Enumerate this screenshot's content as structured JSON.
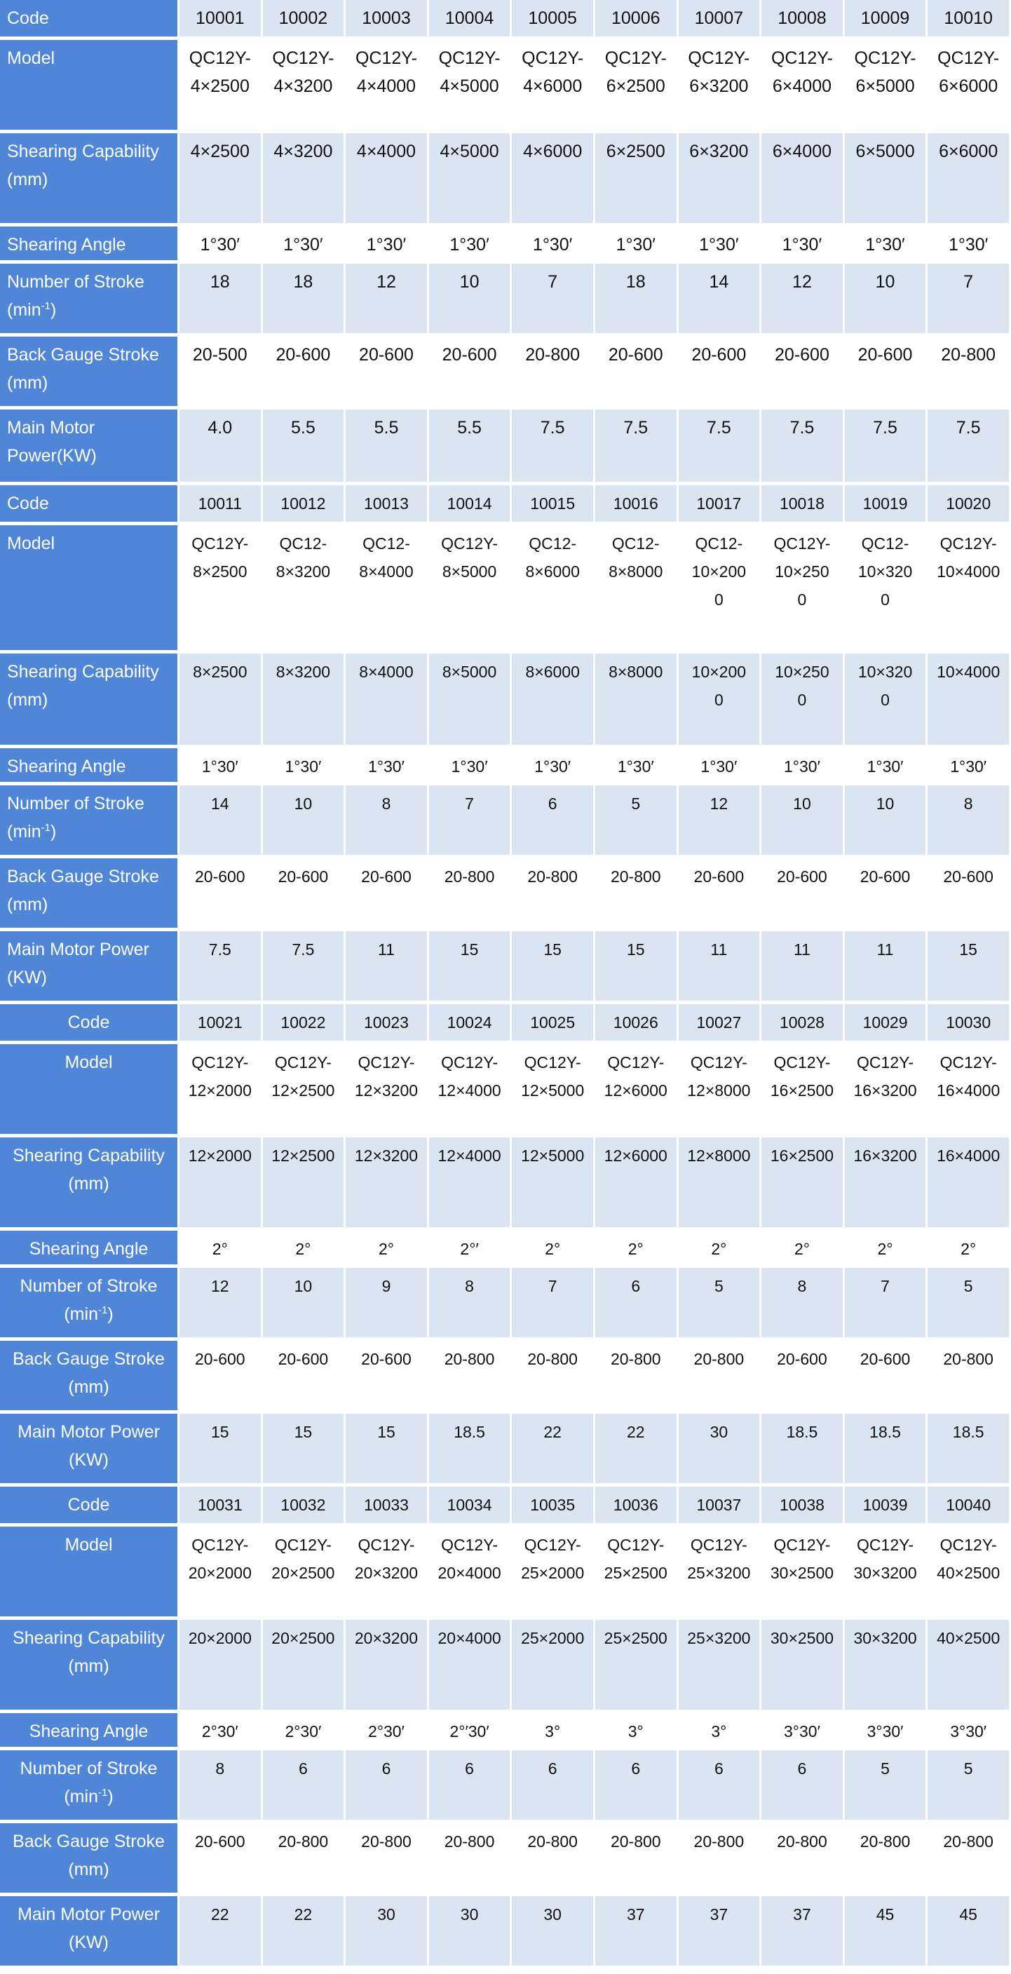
{
  "tables": [
    {
      "codes": [
        "10001",
        "10002",
        "10003",
        "10004",
        "10005",
        "10006",
        "10007",
        "10008",
        "10009",
        "10010"
      ],
      "labels": {
        "code": "Code",
        "model": "Model",
        "shear_cap_1": "Shearing Capability",
        "shear_cap_2": "(mm)",
        "angle": "Shearing Angle",
        "stroke_1": "Number of Stroke",
        "stroke_2a": "(min",
        "stroke_sup": "-1",
        "stroke_2b": ")",
        "gauge_1": "Back Gauge Stroke",
        "gauge_2": "(mm)",
        "motor_1": "Main Motor",
        "motor_2": "Power(KW)"
      },
      "model_top": [
        "QC12Y-",
        "QC12Y-",
        "QC12Y-",
        "QC12Y-",
        "QC12Y-",
        "QC12Y-",
        "QC12Y-",
        "QC12Y-",
        "QC12Y-",
        "QC12Y-"
      ],
      "model_bottom": [
        "4×2500",
        "4×3200",
        "4×4000",
        "4×5000",
        "4×6000",
        "6×2500",
        "6×3200",
        "6×4000",
        "6×5000",
        "6×6000"
      ],
      "capability": [
        "4×2500",
        "4×3200",
        "4×4000",
        "4×5000",
        "4×6000",
        "6×2500",
        "6×3200",
        "6×4000",
        "6×5000",
        "6×6000"
      ],
      "angle": [
        "1°30′",
        "1°30′",
        "1°30′",
        "1°30′",
        "1°30′",
        "1°30′",
        "1°30′",
        "1°30′",
        "1°30′",
        "1°30′"
      ],
      "strokes": [
        "18",
        "18",
        "12",
        "10",
        "7",
        "18",
        "14",
        "12",
        "10",
        "7"
      ],
      "gauge": [
        "20-500",
        "20-600",
        "20-600",
        "20-600",
        "20-800",
        "20-600",
        "20-600",
        "20-600",
        "20-600",
        "20-800"
      ],
      "motor": [
        "4.0",
        "5.5",
        "5.5",
        "5.5",
        "7.5",
        "7.5",
        "7.5",
        "7.5",
        "7.5",
        "7.5"
      ]
    },
    {
      "codes": [
        "10011",
        "10012",
        "10013",
        "10014",
        "10015",
        "10016",
        "10017",
        "10018",
        "10019",
        "10020"
      ],
      "labels": {
        "code": "Code",
        "model": "Model",
        "shear_cap_1": "Shearing Capability",
        "shear_cap_2": "(mm)",
        "angle": "Shearing Angle",
        "stroke_1": "Number of Stroke",
        "stroke_2a": "(min",
        "stroke_sup": "-1",
        "stroke_2b": ")",
        "gauge_1": "Back Gauge Stroke",
        "gauge_2": "(mm)",
        "motor_1": "Main Motor Power",
        "motor_2": "(KW)"
      },
      "model_top": [
        "QC12Y-",
        "QC12-",
        "QC12-",
        "QC12Y-",
        "QC12-",
        "QC12-",
        "QC12-",
        "QC12Y-",
        "QC12-",
        "QC12Y-"
      ],
      "model_bottom": [
        "8×2500",
        "8×3200",
        "8×4000",
        "8×5000",
        "8×6000",
        "8×8000",
        "10×200",
        "10×250",
        "10×320",
        "10×4000"
      ],
      "model_extra": [
        "",
        "",
        "",
        "",
        "",
        "",
        "0",
        "0",
        "0",
        ""
      ],
      "capability": [
        "8×2500",
        "8×3200",
        "8×4000",
        "8×5000",
        "8×6000",
        "8×8000",
        "10×200",
        "10×250",
        "10×320",
        "10×4000"
      ],
      "capability_extra": [
        "",
        "",
        "",
        "",
        "",
        "",
        "0",
        "0",
        "0",
        ""
      ],
      "angle": [
        "1°30′",
        "1°30′",
        "1°30′",
        "1°30′",
        "1°30′",
        "1°30′",
        "1°30′",
        "1°30′",
        "1°30′",
        "1°30′"
      ],
      "strokes": [
        "14",
        "10",
        "8",
        "7",
        "6",
        "5",
        "12",
        "10",
        "10",
        "8"
      ],
      "gauge": [
        "20-600",
        "20-600",
        "20-600",
        "20-800",
        "20-800",
        "20-800",
        "20-600",
        "20-600",
        "20-600",
        "20-600"
      ],
      "motor": [
        "7.5",
        "7.5",
        "11",
        "15",
        "15",
        "15",
        "11",
        "11",
        "11",
        "15"
      ]
    },
    {
      "codes": [
        "10021",
        "10022",
        "10023",
        "10024",
        "10025",
        "10026",
        "10027",
        "10028",
        "10029",
        "10030"
      ],
      "labels": {
        "code": "Code",
        "model": "Model",
        "shear_cap_1": "Shearing Capability",
        "shear_cap_2": "(mm)",
        "angle": "Shearing Angle",
        "stroke_1": "Number of Stroke",
        "stroke_2a": "(min",
        "stroke_sup": "-1",
        "stroke_2b": ")",
        "gauge_1": "Back Gauge Stroke",
        "gauge_2": "(mm)",
        "motor_1": "Main Motor Power",
        "motor_2": "(KW)"
      },
      "model_top": [
        "QC12Y-",
        "QC12Y-",
        "QC12Y-",
        "QC12Y-",
        "QC12Y-",
        "QC12Y-",
        "QC12Y-",
        "QC12Y-",
        "QC12Y-",
        "QC12Y-"
      ],
      "model_bottom": [
        "12×2000",
        "12×2500",
        "12×3200",
        "12×4000",
        "12×5000",
        "12×6000",
        "12×8000",
        "16×2500",
        "16×3200",
        "16×4000"
      ],
      "capability": [
        "12×2000",
        "12×2500",
        "12×3200",
        "12×4000",
        "12×5000",
        "12×6000",
        "12×8000",
        "16×2500",
        "16×3200",
        "16×4000"
      ],
      "angle": [
        "2°",
        "2°",
        "2°",
        "2°′",
        "2°",
        "2°",
        "2°",
        "2°",
        "2°",
        "2°"
      ],
      "strokes": [
        "12",
        "10",
        "9",
        "8",
        "7",
        "6",
        "5",
        "8",
        "7",
        "5"
      ],
      "gauge": [
        "20-600",
        "20-600",
        "20-600",
        "20-800",
        "20-800",
        "20-800",
        "20-800",
        "20-600",
        "20-600",
        "20-800"
      ],
      "motor": [
        "15",
        "15",
        "15",
        "18.5",
        "22",
        "22",
        "30",
        "18.5",
        "18.5",
        "18.5"
      ]
    },
    {
      "codes": [
        "10031",
        "10032",
        "10033",
        "10034",
        "10035",
        "10036",
        "10037",
        "10038",
        "10039",
        "10040"
      ],
      "labels": {
        "code": "Code",
        "model": "Model",
        "shear_cap_1": "Shearing Capability",
        "shear_cap_2": "(mm)",
        "angle": "Shearing Angle",
        "stroke_1": "Number of Stroke",
        "stroke_2a": "(min",
        "stroke_sup": "-1",
        "stroke_2b": ")",
        "gauge_1": "Back Gauge Stroke",
        "gauge_2": "(mm)",
        "motor_1": "Main Motor Power",
        "motor_2": "(KW)"
      },
      "model_top": [
        "QC12Y-",
        "QC12Y-",
        "QC12Y-",
        "QC12Y-",
        "QC12Y-",
        "QC12Y-",
        "QC12Y-",
        "QC12Y-",
        "QC12Y-",
        "QC12Y-"
      ],
      "model_bottom": [
        "20×2000",
        "20×2500",
        "20×3200",
        "20×4000",
        "25×2000",
        "25×2500",
        "25×3200",
        "30×2500",
        "30×3200",
        "40×2500"
      ],
      "capability": [
        "20×2000",
        "20×2500",
        "20×3200",
        "20×4000",
        "25×2000",
        "25×2500",
        "25×3200",
        "30×2500",
        "30×3200",
        "40×2500"
      ],
      "angle": [
        "2°30′",
        "2°30′",
        "2°30′",
        "2°′30′",
        "3°",
        "3°",
        "3°",
        "3°30′",
        "3°30′",
        "3°30′"
      ],
      "strokes": [
        "8",
        "6",
        "6",
        "6",
        "6",
        "6",
        "6",
        "6",
        "5",
        "5"
      ],
      "gauge": [
        "20-600",
        "20-800",
        "20-800",
        "20-800",
        "20-800",
        "20-800",
        "20-800",
        "20-800",
        "20-800",
        "20-800"
      ],
      "motor": [
        "22",
        "22",
        "30",
        "30",
        "30",
        "37",
        "37",
        "37",
        "45",
        "45"
      ]
    }
  ]
}
